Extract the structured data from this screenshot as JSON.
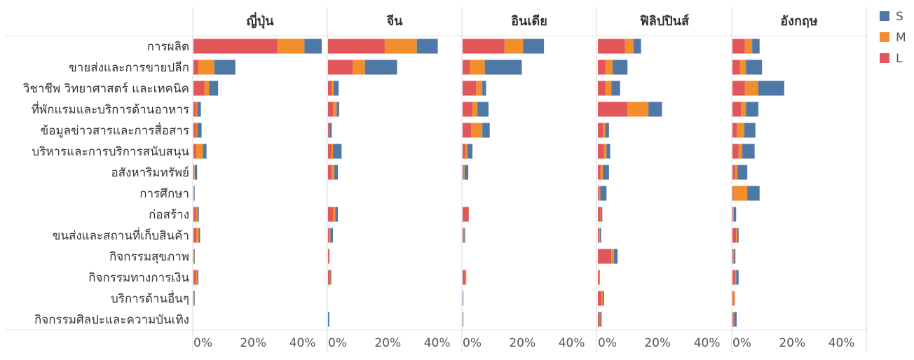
{
  "chart_data": {
    "type": "bar",
    "orientation": "horizontal",
    "stacked": true,
    "categories": [
      "การผลิต",
      "ขายส่งและการขายปลีก",
      "วิชาชีพ วิทยาศาสตร์ และเทคนิค",
      "ที่พักแรมและบริการด้านอาหาร",
      "ข้อมูลข่าวสารและการสื่อสาร",
      "บริหารและการบริการสนับสนุน",
      "อสังหาริมทรัพย์",
      "การศึกษา",
      "ก่อสร้าง",
      "ขนส่งและสถานที่เก็บสินค้า",
      "กิจกรรมสุขภาพ",
      "กิจกรรมทางการเงิน",
      "บริการด้านอื่นๆ",
      "กิจกรรมศิลปะและความบันเทิง"
    ],
    "x_ticks": [
      "0%",
      "20%",
      "40%"
    ],
    "xlim": [
      0,
      54
    ],
    "legend": {
      "position": "right",
      "items": [
        {
          "key": "S",
          "label": "S",
          "color": "#4e79a7"
        },
        {
          "key": "M",
          "label": "M",
          "color": "#f28e2b"
        },
        {
          "key": "L",
          "label": "L",
          "color": "#e15759"
        }
      ]
    },
    "stack_order": [
      "L",
      "M",
      "S"
    ],
    "panels": [
      {
        "title": "ญี่ปุ่น",
        "L": [
          34,
          2,
          4.5,
          1,
          1,
          1,
          0.3,
          0.2,
          1,
          1.2,
          0.3,
          1,
          0.3,
          0
        ],
        "M": [
          11,
          6.5,
          1.8,
          0.5,
          0.5,
          2.8,
          0.2,
          0.1,
          0.7,
          1,
          0.1,
          0.6,
          0.1,
          0
        ],
        "S": [
          7,
          8.5,
          3.7,
          1.5,
          1.8,
          1.5,
          1,
          0.2,
          0.5,
          0.5,
          0.1,
          0.4,
          0.1,
          0
        ]
      },
      {
        "title": "จีน",
        "L": [
          23,
          10,
          1.5,
          2,
          0.3,
          1.5,
          1.5,
          0,
          2,
          0.5,
          0.3,
          0.7,
          0,
          0
        ],
        "M": [
          13,
          5,
          0.8,
          1.5,
          0.2,
          0.5,
          1,
          0,
          1,
          0.5,
          0.2,
          0.3,
          0,
          0
        ],
        "S": [
          8.5,
          13,
          2,
          1,
          1,
          3.5,
          1.5,
          0,
          1,
          1,
          0.1,
          0.3,
          0,
          0.5
        ]
      },
      {
        "title": "อินเดีย",
        "L": [
          17,
          3,
          5.5,
          4,
          3.5,
          1,
          0.5,
          0,
          2.5,
          0.5,
          0,
          1,
          0,
          0
        ],
        "M": [
          7.5,
          6,
          2.5,
          2,
          4.5,
          1,
          0.3,
          0,
          0,
          0.2,
          0,
          0.5,
          0,
          0
        ],
        "S": [
          8.5,
          15,
          1.5,
          4.5,
          3,
          2,
          1.5,
          0,
          0,
          0.3,
          0,
          0,
          0.3,
          0.3
        ]
      },
      {
        "title": "ฟิลิปปินส์",
        "L": [
          11,
          3,
          3,
          12,
          2,
          2.5,
          1,
          0.5,
          1,
          0.5,
          5.5,
          0.3,
          1.5,
          0.8
        ],
        "M": [
          3.5,
          3,
          2.5,
          8.5,
          1,
          1,
          1,
          0.5,
          0.3,
          0.3,
          1,
          0.3,
          0.5,
          0.2
        ],
        "S": [
          3,
          6,
          3.5,
          5.5,
          1.5,
          1.5,
          2.5,
          2.5,
          0.5,
          0.5,
          1.5,
          0.2,
          0.5,
          0.5
        ]
      },
      {
        "title": "อังกฤษ",
        "L": [
          5,
          3,
          5,
          3.5,
          1.8,
          2.5,
          1,
          0.5,
          0.3,
          1.5,
          0.5,
          1,
          0.5,
          0.5
        ],
        "M": [
          3,
          2.5,
          5.5,
          2,
          3,
          1.5,
          1,
          5.5,
          0.2,
          0.5,
          0.2,
          0.5,
          0.5,
          0.2
        ],
        "S": [
          3,
          6.5,
          10.5,
          5,
          4.5,
          5,
          4,
          5,
          1,
          0.5,
          0.5,
          1,
          0,
          1
        ]
      }
    ]
  }
}
